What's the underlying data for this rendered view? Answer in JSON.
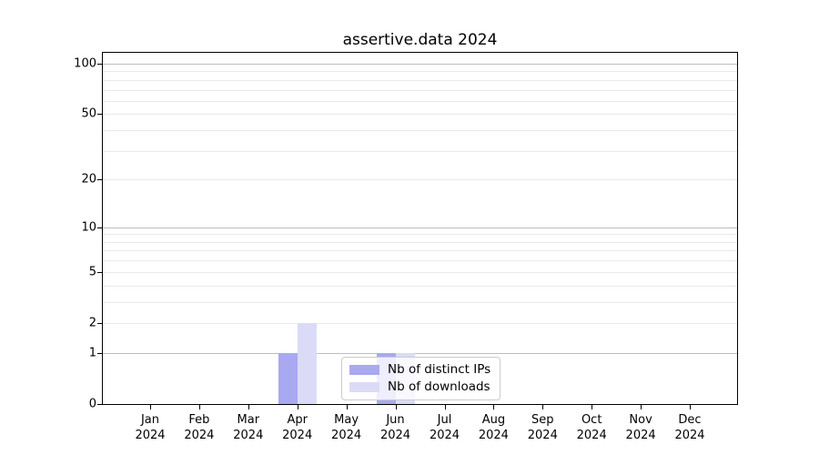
{
  "chart_data": {
    "type": "bar",
    "title": "assertive.data 2024",
    "xlabel": "",
    "ylabel": "",
    "categories": [
      "Jan",
      "Feb",
      "Mar",
      "Apr",
      "May",
      "Jun",
      "Jul",
      "Aug",
      "Sep",
      "Oct",
      "Nov",
      "Dec"
    ],
    "x_year": "2024",
    "series": [
      {
        "name": "Nb of distinct IPs",
        "color": "#a9a9f1",
        "values": [
          0,
          0,
          0,
          1,
          0,
          1,
          0,
          0,
          0,
          0,
          0,
          0
        ]
      },
      {
        "name": "Nb of downloads",
        "color": "#dbdbf8",
        "values": [
          0,
          0,
          0,
          2,
          0,
          1,
          0,
          0,
          0,
          0,
          0,
          0
        ]
      }
    ],
    "scale": "log1p",
    "ylim": [
      0,
      116
    ],
    "y_tick_values": [
      0,
      1,
      2,
      5,
      10,
      20,
      50,
      100
    ],
    "y_tick_labels": [
      "0",
      "1",
      "2",
      "5",
      "10",
      "20",
      "50",
      "100"
    ],
    "y_major_gridlines": [
      1,
      10,
      100
    ],
    "y_minor_gridlines": [
      2,
      3,
      4,
      5,
      6,
      7,
      8,
      9,
      20,
      30,
      40,
      50,
      60,
      70,
      80,
      90
    ],
    "legend_position": "lower center",
    "grid": "on",
    "colors": {
      "major_grid": "#bdbdbd",
      "minor_grid": "#e9e9e9",
      "axis": "#000000",
      "background": "#ffffff"
    }
  }
}
